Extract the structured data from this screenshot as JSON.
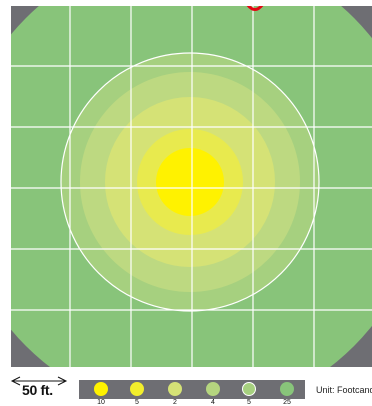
{
  "colors": {
    "background": "#6e6e73",
    "zone_25": "#88c47a",
    "zone_5": "#a6d07f",
    "zone_4": "#bdd981",
    "zone_2": "#d5e276",
    "zone_5b": "#e8ea4e",
    "zone_10": "#fff200",
    "grid": "#ffffff",
    "title_accent": "#e30613"
  },
  "zones": [
    {
      "name": "zone-25",
      "value": "25",
      "color": "#88c47a"
    },
    {
      "name": "zone-5-outlined",
      "value": "5",
      "color": "#a6d07f",
      "outlined": true
    },
    {
      "name": "zone-4",
      "value": "4",
      "color": "#bdd981"
    },
    {
      "name": "zone-2",
      "value": "2",
      "color": "#d5e276"
    },
    {
      "name": "zone-5",
      "value": "5",
      "color": "#e8ea4e"
    },
    {
      "name": "zone-10",
      "value": "10",
      "color": "#fff200"
    }
  ],
  "scale": {
    "label": "50 ft."
  },
  "legend": {
    "items": [
      {
        "value": "10",
        "color": "#fff200"
      },
      {
        "value": "5",
        "color": "#f2ee2c"
      },
      {
        "value": "2",
        "color": "#d5e276"
      },
      {
        "value": "4",
        "color": "#b5d57f"
      },
      {
        "value": "5",
        "color": "#a6d07f",
        "outlined": true
      },
      {
        "value": "25",
        "color": "#88c47a"
      }
    ],
    "unit_label": "Unit: Footcand"
  }
}
